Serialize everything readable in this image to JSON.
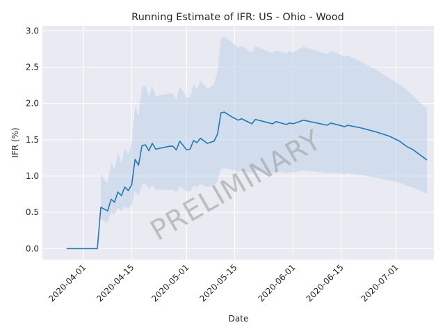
{
  "chart_data": {
    "type": "line",
    "title": "Running Estimate of IFR: US - Ohio - Wood",
    "xlabel": "Date",
    "ylabel": "IFR (%)",
    "watermark": "PRELIMINARY",
    "x_range": [
      "2020-03-20",
      "2020-07-12"
    ],
    "ylim": [
      -0.15,
      3.07
    ],
    "grid": true,
    "x_ticks": [
      "2020-04-01",
      "2020-04-15",
      "2020-05-01",
      "2020-05-15",
      "2020-06-01",
      "2020-06-15",
      "2020-07-01"
    ],
    "y_ticks": [
      0.0,
      0.5,
      1.0,
      1.5,
      2.0,
      2.5,
      3.0
    ],
    "y_tick_labels": [
      "0.0",
      "0.5",
      "1.0",
      "1.5",
      "2.0",
      "2.5",
      "3.0"
    ],
    "colors": {
      "line": "#1f77b4",
      "band": "#b8cfe6",
      "plot_bg": "#eaeaf2",
      "grid": "#ffffff"
    },
    "series": [
      {
        "values": [
          [
            "2020-03-27",
            0.0
          ],
          [
            "2020-04-05",
            0.0
          ],
          [
            "2020-04-06",
            0.57
          ],
          [
            "2020-04-08",
            0.52
          ],
          [
            "2020-04-09",
            0.68
          ],
          [
            "2020-04-10",
            0.64
          ],
          [
            "2020-04-11",
            0.78
          ],
          [
            "2020-04-12",
            0.73
          ],
          [
            "2020-04-13",
            0.85
          ],
          [
            "2020-04-14",
            0.8
          ],
          [
            "2020-04-15",
            0.88
          ],
          [
            "2020-04-16",
            1.23
          ],
          [
            "2020-04-17",
            1.15
          ],
          [
            "2020-04-18",
            1.42
          ],
          [
            "2020-04-19",
            1.43
          ],
          [
            "2020-04-20",
            1.35
          ],
          [
            "2020-04-21",
            1.45
          ],
          [
            "2020-04-22",
            1.37
          ],
          [
            "2020-04-26",
            1.41
          ],
          [
            "2020-04-27",
            1.41
          ],
          [
            "2020-04-28",
            1.36
          ],
          [
            "2020-04-29",
            1.48
          ],
          [
            "2020-05-01",
            1.36
          ],
          [
            "2020-05-02",
            1.37
          ],
          [
            "2020-05-03",
            1.49
          ],
          [
            "2020-05-04",
            1.46
          ],
          [
            "2020-05-05",
            1.52
          ],
          [
            "2020-05-07",
            1.45
          ],
          [
            "2020-05-09",
            1.48
          ],
          [
            "2020-05-10",
            1.58
          ],
          [
            "2020-05-11",
            1.87
          ],
          [
            "2020-05-12",
            1.88
          ],
          [
            "2020-05-14",
            1.82
          ],
          [
            "2020-05-16",
            1.77
          ],
          [
            "2020-05-17",
            1.79
          ],
          [
            "2020-05-20",
            1.72
          ],
          [
            "2020-05-21",
            1.78
          ],
          [
            "2020-05-26",
            1.72
          ],
          [
            "2020-05-27",
            1.75
          ],
          [
            "2020-05-30",
            1.71
          ],
          [
            "2020-05-31",
            1.73
          ],
          [
            "2020-06-01",
            1.72
          ],
          [
            "2020-06-04",
            1.77
          ],
          [
            "2020-06-11",
            1.7
          ],
          [
            "2020-06-12",
            1.73
          ],
          [
            "2020-06-16",
            1.68
          ],
          [
            "2020-06-17",
            1.7
          ],
          [
            "2020-06-21",
            1.66
          ],
          [
            "2020-06-25",
            1.61
          ],
          [
            "2020-06-29",
            1.55
          ],
          [
            "2020-07-02",
            1.48
          ],
          [
            "2020-07-04",
            1.41
          ],
          [
            "2020-07-06",
            1.36
          ],
          [
            "2020-07-08",
            1.29
          ],
          [
            "2020-07-10",
            1.22
          ]
        ],
        "upper": [
          [
            "2020-04-06",
            1.04
          ],
          [
            "2020-04-07",
            0.95
          ],
          [
            "2020-04-08",
            0.9
          ],
          [
            "2020-04-09",
            1.18
          ],
          [
            "2020-04-10",
            1.1
          ],
          [
            "2020-04-11",
            1.33
          ],
          [
            "2020-04-12",
            1.18
          ],
          [
            "2020-04-13",
            1.38
          ],
          [
            "2020-04-14",
            1.3
          ],
          [
            "2020-04-15",
            1.45
          ],
          [
            "2020-04-16",
            1.96
          ],
          [
            "2020-04-17",
            1.83
          ],
          [
            "2020-04-18",
            2.23
          ],
          [
            "2020-04-19",
            2.25
          ],
          [
            "2020-04-20",
            2.1
          ],
          [
            "2020-04-21",
            2.24
          ],
          [
            "2020-04-22",
            2.1
          ],
          [
            "2020-04-26",
            2.14
          ],
          [
            "2020-04-27",
            2.13
          ],
          [
            "2020-04-28",
            2.04
          ],
          [
            "2020-04-29",
            2.23
          ],
          [
            "2020-05-01",
            2.08
          ],
          [
            "2020-05-02",
            2.08
          ],
          [
            "2020-05-03",
            2.27
          ],
          [
            "2020-05-04",
            2.2
          ],
          [
            "2020-05-05",
            2.31
          ],
          [
            "2020-05-07",
            2.2
          ],
          [
            "2020-05-09",
            2.26
          ],
          [
            "2020-05-10",
            2.46
          ],
          [
            "2020-05-11",
            2.9
          ],
          [
            "2020-05-12",
            2.92
          ],
          [
            "2020-05-14",
            2.85
          ],
          [
            "2020-05-16",
            2.77
          ],
          [
            "2020-05-17",
            2.79
          ],
          [
            "2020-05-20",
            2.7
          ],
          [
            "2020-05-21",
            2.79
          ],
          [
            "2020-05-26",
            2.69
          ],
          [
            "2020-05-27",
            2.73
          ],
          [
            "2020-05-30",
            2.69
          ],
          [
            "2020-05-31",
            2.72
          ],
          [
            "2020-06-01",
            2.7
          ],
          [
            "2020-06-04",
            2.78
          ],
          [
            "2020-06-11",
            2.68
          ],
          [
            "2020-06-12",
            2.72
          ],
          [
            "2020-06-16",
            2.65
          ],
          [
            "2020-06-17",
            2.66
          ],
          [
            "2020-06-21",
            2.57
          ],
          [
            "2020-06-25",
            2.47
          ],
          [
            "2020-06-29",
            2.35
          ],
          [
            "2020-07-02",
            2.26
          ],
          [
            "2020-07-04",
            2.19
          ],
          [
            "2020-07-06",
            2.1
          ],
          [
            "2020-07-08",
            2.01
          ],
          [
            "2020-07-10",
            1.93
          ]
        ],
        "lower": [
          [
            "2020-04-06",
            0.42
          ],
          [
            "2020-04-07",
            0.38
          ],
          [
            "2020-04-08",
            0.36
          ],
          [
            "2020-04-09",
            0.5
          ],
          [
            "2020-04-10",
            0.47
          ],
          [
            "2020-04-11",
            0.56
          ],
          [
            "2020-04-12",
            0.52
          ],
          [
            "2020-04-13",
            0.58
          ],
          [
            "2020-04-14",
            0.55
          ],
          [
            "2020-04-15",
            0.6
          ],
          [
            "2020-04-16",
            0.8
          ],
          [
            "2020-04-17",
            0.72
          ],
          [
            "2020-04-18",
            0.88
          ],
          [
            "2020-04-19",
            0.89
          ],
          [
            "2020-04-20",
            0.82
          ],
          [
            "2020-04-21",
            0.88
          ],
          [
            "2020-04-22",
            0.81
          ],
          [
            "2020-04-26",
            0.81
          ],
          [
            "2020-04-27",
            0.81
          ],
          [
            "2020-04-28",
            0.78
          ],
          [
            "2020-04-29",
            0.86
          ],
          [
            "2020-05-01",
            0.79
          ],
          [
            "2020-05-02",
            0.79
          ],
          [
            "2020-05-03",
            0.87
          ],
          [
            "2020-05-04",
            0.85
          ],
          [
            "2020-05-05",
            0.89
          ],
          [
            "2020-05-07",
            0.85
          ],
          [
            "2020-05-09",
            0.87
          ],
          [
            "2020-05-10",
            0.93
          ],
          [
            "2020-05-11",
            1.1
          ],
          [
            "2020-05-12",
            1.11
          ],
          [
            "2020-05-14",
            1.09
          ],
          [
            "2020-05-16",
            1.06
          ],
          [
            "2020-05-17",
            1.07
          ],
          [
            "2020-05-20",
            1.04
          ],
          [
            "2020-05-21",
            1.08
          ],
          [
            "2020-05-26",
            1.04
          ],
          [
            "2020-05-27",
            1.06
          ],
          [
            "2020-05-30",
            1.04
          ],
          [
            "2020-05-31",
            1.05
          ],
          [
            "2020-06-01",
            1.05
          ],
          [
            "2020-06-04",
            1.08
          ],
          [
            "2020-06-11",
            1.04
          ],
          [
            "2020-06-12",
            1.05
          ],
          [
            "2020-06-16",
            1.03
          ],
          [
            "2020-06-17",
            1.04
          ],
          [
            "2020-06-21",
            1.01
          ],
          [
            "2020-06-25",
            0.98
          ],
          [
            "2020-06-29",
            0.94
          ],
          [
            "2020-07-02",
            0.91
          ],
          [
            "2020-07-04",
            0.87
          ],
          [
            "2020-07-06",
            0.84
          ],
          [
            "2020-07-08",
            0.8
          ],
          [
            "2020-07-10",
            0.76
          ]
        ]
      }
    ]
  }
}
